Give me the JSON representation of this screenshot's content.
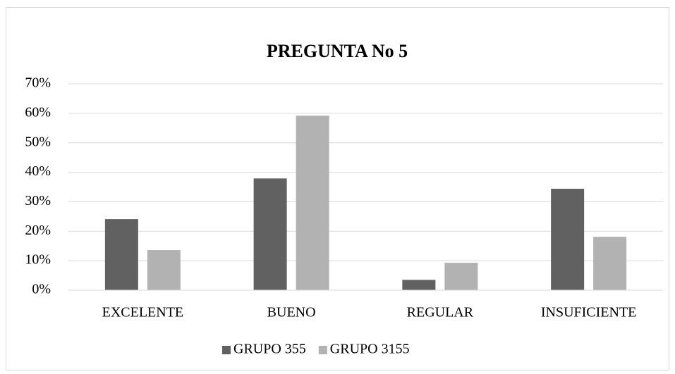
{
  "chart_data": {
    "type": "bar",
    "title": "PREGUNTA No 5",
    "categories": [
      "EXCELENTE",
      "BUENO",
      "REGULAR",
      "INSUFICIENTE"
    ],
    "series": [
      {
        "name": "GRUPO 355",
        "color": "#616161",
        "values": [
          24.1,
          37.9,
          3.5,
          34.4
        ]
      },
      {
        "name": "GRUPO 3155",
        "color": "#b2b2b2",
        "values": [
          13.6,
          59.2,
          9.3,
          18.1
        ]
      }
    ],
    "ylim": [
      0,
      70
    ],
    "yticks": [
      {
        "value": 0,
        "label": "0%"
      },
      {
        "value": 10,
        "label": "10%"
      },
      {
        "value": 20,
        "label": "20%"
      },
      {
        "value": 30,
        "label": "30%"
      },
      {
        "value": 40,
        "label": "40%"
      },
      {
        "value": 50,
        "label": "50%"
      },
      {
        "value": 60,
        "label": "60%"
      },
      {
        "value": 70,
        "label": "70%"
      }
    ],
    "grid": true,
    "legend": "bottom"
  }
}
